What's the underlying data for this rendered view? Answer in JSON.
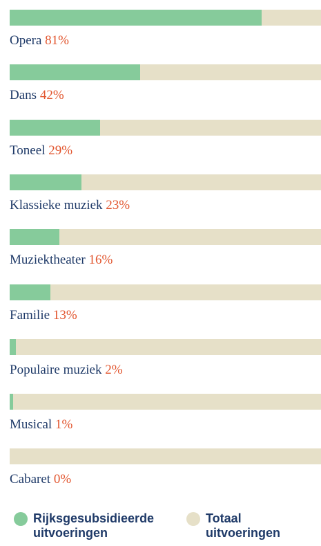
{
  "chart_data": {
    "type": "bar",
    "categories": [
      "Opera",
      "Dans",
      "Toneel",
      "Klassieke muziek",
      "Muziektheater",
      "Familie",
      "Populaire muziek",
      "Musical",
      "Cabaret"
    ],
    "values": [
      81,
      42,
      29,
      23,
      16,
      13,
      2,
      1,
      0
    ],
    "value_labels": [
      "81%",
      "42%",
      "29%",
      "23%",
      "16%",
      "13%",
      "2%",
      "1%",
      "0%"
    ],
    "xlim": [
      0,
      100
    ],
    "series": [
      {
        "name": "Rijksgesubsidieer­de uitvoeringen",
        "color": "#86cb9b"
      },
      {
        "name": "Totaal uitvoeringen",
        "color": "#e6e0c8"
      }
    ]
  }
}
